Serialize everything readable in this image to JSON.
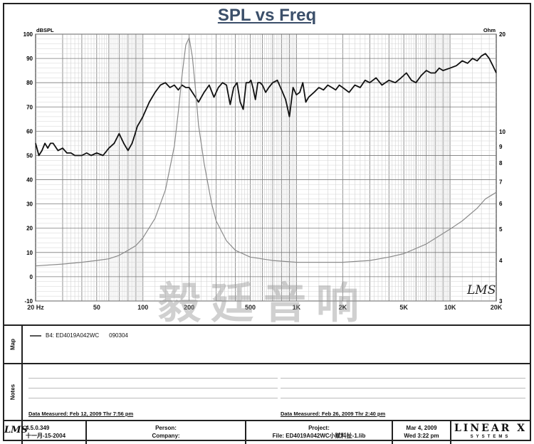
{
  "chart_data": {
    "type": "line",
    "title": "SPL vs Freq",
    "left_axis_unit": "dBSPL",
    "right_axis_unit": "Ohm",
    "x_scale": "log",
    "xlim": [
      20,
      20000
    ],
    "ylim": [
      -10,
      100
    ],
    "y2_scale": "log",
    "y2lim": [
      3,
      20
    ],
    "grid": true,
    "x_tick_labels": [
      {
        "v": 20,
        "t": "20 Hz"
      },
      {
        "v": 50,
        "t": "50"
      },
      {
        "v": 100,
        "t": "100"
      },
      {
        "v": 200,
        "t": "200"
      },
      {
        "v": 500,
        "t": "500"
      },
      {
        "v": 1000,
        "t": "1K"
      },
      {
        "v": 2000,
        "t": "2K"
      },
      {
        "v": 5000,
        "t": "5K"
      },
      {
        "v": 10000,
        "t": "10K"
      },
      {
        "v": 20000,
        "t": "20K"
      }
    ],
    "y_ticks": [
      -10,
      0,
      10,
      20,
      30,
      40,
      50,
      60,
      70,
      80,
      90,
      100
    ],
    "y2_ticks": [
      3,
      4,
      5,
      6,
      7,
      8,
      9,
      10,
      20
    ],
    "series": [
      {
        "role": "spl",
        "axis": "left",
        "color": "#111111",
        "x": [
          20,
          21,
          22,
          23,
          24,
          25,
          26,
          28,
          30,
          32,
          34,
          36,
          38,
          40,
          43,
          46,
          50,
          55,
          60,
          65,
          70,
          75,
          80,
          85,
          88,
          92,
          96,
          100,
          110,
          120,
          130,
          140,
          150,
          160,
          170,
          180,
          190,
          200,
          215,
          230,
          250,
          270,
          290,
          310,
          330,
          350,
          370,
          390,
          410,
          430,
          450,
          470,
          490,
          505,
          520,
          540,
          560,
          580,
          600,
          630,
          660,
          700,
          750,
          800,
          850,
          900,
          950,
          1000,
          1050,
          1100,
          1150,
          1200,
          1300,
          1400,
          1500,
          1600,
          1700,
          1800,
          1900,
          2000,
          2200,
          2400,
          2600,
          2800,
          3000,
          3300,
          3600,
          4000,
          4400,
          4800,
          5200,
          5600,
          6000,
          6500,
          7000,
          7500,
          8000,
          8500,
          9000,
          10000,
          11000,
          12000,
          13000,
          14000,
          15000,
          16000,
          17000,
          18000,
          19000,
          20000
        ],
        "y": [
          55,
          50,
          52,
          55,
          53,
          55,
          55,
          52,
          53,
          51,
          51,
          50,
          50,
          50,
          51,
          50,
          51,
          50,
          53,
          55,
          59,
          55,
          52,
          55,
          58,
          62,
          64,
          66,
          72,
          76,
          79,
          80,
          78,
          79,
          77,
          79,
          78,
          78,
          75,
          72,
          76,
          79,
          74,
          78,
          80,
          79,
          71,
          78,
          80,
          72,
          69,
          80,
          80,
          81,
          78,
          73,
          80,
          80,
          79,
          76,
          78,
          80,
          81,
          77,
          73,
          66,
          78,
          75,
          76,
          80,
          72,
          74,
          76,
          78,
          77,
          79,
          78,
          77,
          79,
          78,
          76,
          79,
          78,
          81,
          80,
          82,
          79,
          81,
          80,
          82,
          84,
          81,
          80,
          83,
          85,
          84,
          84,
          86,
          85,
          86,
          87,
          89,
          88,
          90,
          89,
          91,
          92,
          90,
          87,
          84
        ]
      },
      {
        "role": "impedance",
        "axis": "right",
        "color": "#8a8a8a",
        "x": [
          20,
          30,
          40,
          50,
          60,
          70,
          80,
          90,
          100,
          120,
          140,
          160,
          170,
          180,
          190,
          200,
          210,
          220,
          230,
          250,
          280,
          300,
          350,
          400,
          500,
          700,
          1000,
          1500,
          2000,
          3000,
          4000,
          5000,
          7000,
          10000,
          12000,
          15000,
          17000,
          18000,
          19000,
          20000
        ],
        "y": [
          3.85,
          3.9,
          3.95,
          4.0,
          4.05,
          4.15,
          4.3,
          4.45,
          4.7,
          5.4,
          6.6,
          9.0,
          11.5,
          15.0,
          18.5,
          19.5,
          17.0,
          13.5,
          10.5,
          8.0,
          6.0,
          5.3,
          4.6,
          4.3,
          4.1,
          4.0,
          3.95,
          3.95,
          3.95,
          4.0,
          4.1,
          4.2,
          4.5,
          5.0,
          5.3,
          5.8,
          6.2,
          6.3,
          6.4,
          6.5
        ]
      }
    ]
  },
  "watermark": "毅廷音响",
  "legend": {
    "entry": "B4: ED4019A042WC",
    "code": "090304"
  },
  "sections": {
    "map_label": "Map",
    "notes_label": "Notes"
  },
  "notes": {
    "left_measured": "Data Measured: Feb 12, 2009 Thr 7:56 pm",
    "right_measured": "Data Measured: Feb 26, 2009 Thr 2:40 pm"
  },
  "footer": {
    "lms_logo": "LMS",
    "version": "4.5.0.349",
    "build_date": "十一月-15-2004",
    "person_label": "Person:",
    "company_label": "Company:",
    "project_label": "Project:",
    "file_label": "File: ED4019A042WC小赋料扯-1.lib",
    "date": "Mar 4, 2009",
    "time": "Wed 3:22 pm",
    "brand": "LINEAR X",
    "brand_sub": "SYSTEMS"
  },
  "chart_badge": "LMS"
}
